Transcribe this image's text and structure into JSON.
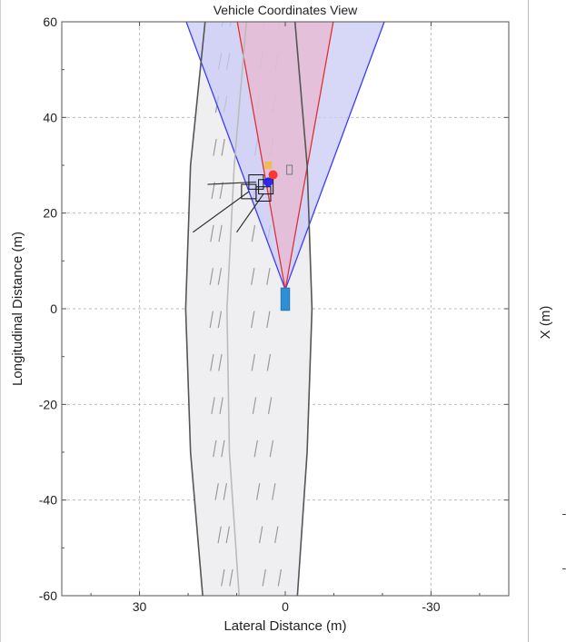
{
  "panel": {
    "title": "Vehicle Coordinates View",
    "xlabel": "Lateral Distance (m)",
    "ylabel": "Longitudinal Distance (m)",
    "right_panel_ylabel": "X (m)"
  },
  "chart_data": {
    "type": "scatter",
    "title": "Vehicle Coordinates View",
    "xlabel": "Lateral Distance (m)",
    "ylabel": "Longitudinal Distance (m)",
    "xlim": [
      46,
      -46
    ],
    "ylim": [
      -60,
      60
    ],
    "x_reversed": true,
    "grid": true,
    "xticks": [
      {
        "value": 30,
        "label": "30"
      },
      {
        "value": 0,
        "label": "0"
      },
      {
        "value": -30,
        "label": "-30"
      }
    ],
    "yticks": [
      {
        "value": 60,
        "label": "60"
      },
      {
        "value": 40,
        "label": "40"
      },
      {
        "value": 20,
        "label": "20"
      },
      {
        "value": 0,
        "label": "0"
      },
      {
        "value": -20,
        "label": "-20"
      },
      {
        "value": -40,
        "label": "-40"
      },
      {
        "value": -60,
        "label": "-60"
      }
    ],
    "coverage_areas": [
      {
        "name": "",
        "color": "#3b3bff",
        "fill": "#c9cbf5",
        "apex": [
          0,
          4
        ],
        "half_angle_deg": 20,
        "range": 60
      },
      {
        "name": "",
        "color": "#e03030",
        "fill": "#e8b8d0",
        "apex": [
          0,
          4
        ],
        "half_angle_deg": 10,
        "range": 60
      }
    ],
    "ego_vehicle": {
      "x": 0,
      "y": 2,
      "length": 4.7,
      "width": 1.8,
      "color": "#2e8fd6"
    },
    "road_boundaries": [
      {
        "color": "#555555",
        "points": [
          [
            17,
            -60
          ],
          [
            19.5,
            -30
          ],
          [
            20.5,
            0
          ],
          [
            19.5,
            30
          ],
          [
            16.5,
            60
          ]
        ]
      },
      {
        "color": "#555555",
        "points": [
          [
            -2.5,
            -60
          ],
          [
            -4.5,
            -30
          ],
          [
            -5.5,
            0
          ],
          [
            -4.5,
            30
          ],
          [
            -2.0,
            60
          ]
        ]
      },
      {
        "color": "#bbbbbb",
        "points": [
          [
            9.5,
            -60
          ],
          [
            11.5,
            -30
          ],
          [
            12,
            0
          ],
          [
            10.5,
            30
          ],
          [
            8,
            60
          ]
        ]
      }
    ],
    "detections": [
      {
        "type": "object",
        "color": "#ff2a1a",
        "x": 2.5,
        "y": 28
      },
      {
        "type": "object",
        "color": "#1a1aff",
        "x": 3.5,
        "y": 26.5
      },
      {
        "type": "object",
        "color": "#f0b83a",
        "x": 3.5,
        "y": 30
      }
    ],
    "tracks": [
      {
        "x": 6,
        "y": 26.5,
        "size": 3
      },
      {
        "x": 4,
        "y": 25.5,
        "size": 3
      },
      {
        "x": 7.5,
        "y": 24.5,
        "size": 3
      },
      {
        "x": 4.5,
        "y": 24,
        "size": 3
      }
    ],
    "velocity_vectors": [
      {
        "from": [
          6,
          26.5
        ],
        "to": [
          16,
          26
        ]
      },
      {
        "from": [
          7.5,
          24.5
        ],
        "to": [
          19,
          16
        ]
      },
      {
        "from": [
          4.5,
          24
        ],
        "to": [
          10,
          16
        ]
      }
    ]
  }
}
